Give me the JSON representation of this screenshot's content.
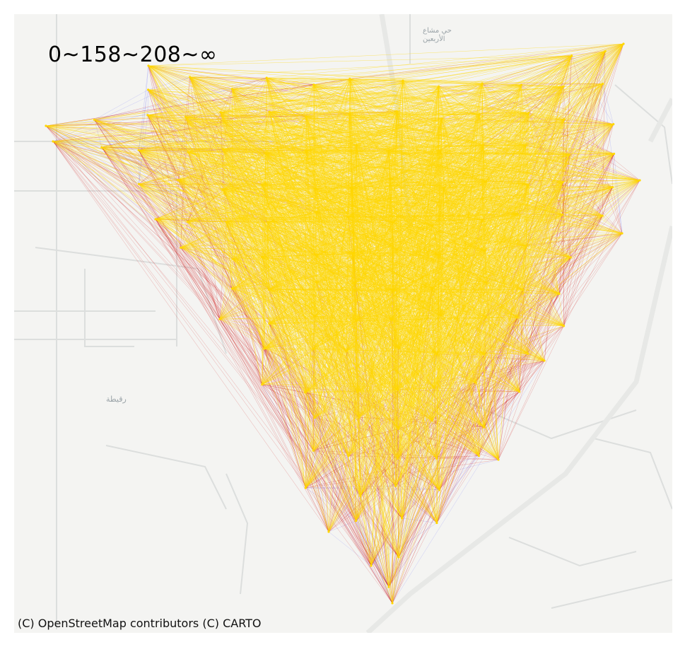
{
  "map": {
    "legend_text": "0~158~208~∞",
    "attribution": "(C) OpenStreetMap contributors (C) CARTO",
    "place_labels": [
      "حي مشاع",
      "الأربعين",
      "رقيطة"
    ],
    "colors": {
      "background": "#f4f4f2",
      "roads": "#dcdedd",
      "major_road": "#e7e8e6",
      "edge_low": "#1515ff",
      "edge_mid": "#cc0000",
      "edge_high": "#ffd700"
    },
    "legend_bins": [
      "0",
      "158",
      "208",
      "∞"
    ]
  }
}
